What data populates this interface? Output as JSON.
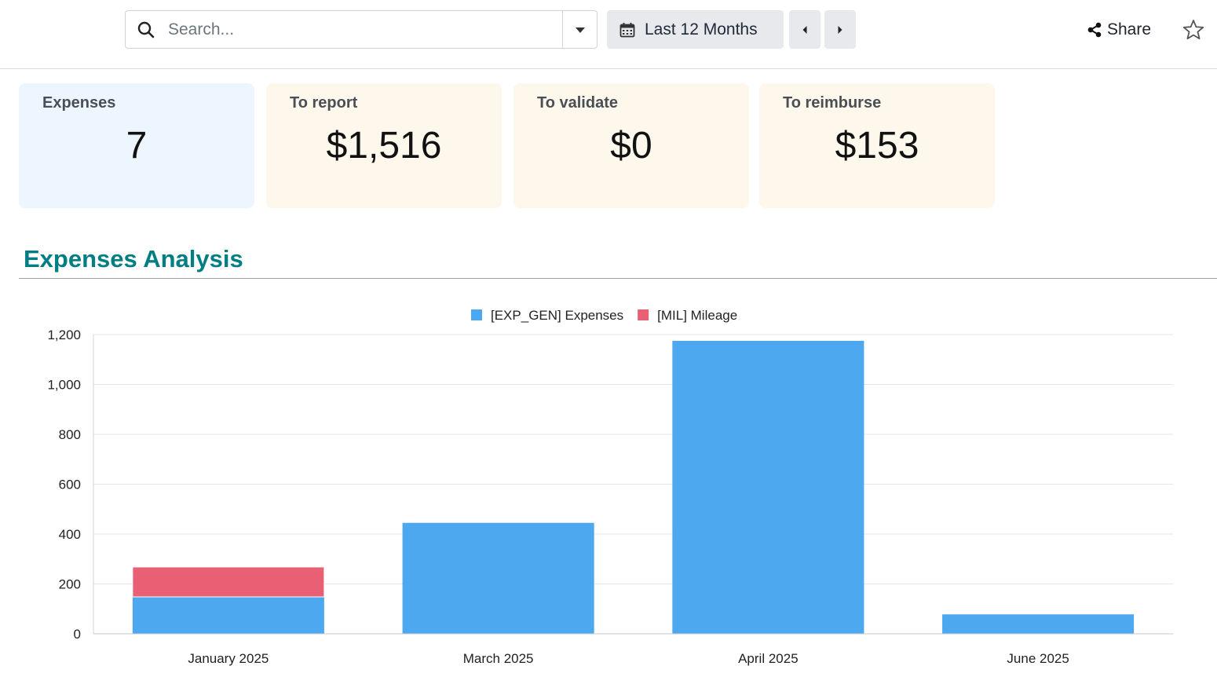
{
  "search": {
    "placeholder": "Search..."
  },
  "date_filter": {
    "label": "Last 12 Months"
  },
  "share": {
    "label": "Share"
  },
  "kpis": [
    {
      "label": "Expenses",
      "value": "7",
      "tone": "blue"
    },
    {
      "label": "To report",
      "value": "$1,516",
      "tone": "cream"
    },
    {
      "label": "To validate",
      "value": "$0",
      "tone": "cream"
    },
    {
      "label": "To reimburse",
      "value": "$153",
      "tone": "cream"
    }
  ],
  "section": {
    "title": "Expenses Analysis"
  },
  "colors": {
    "accent": "#017e84",
    "expenses": "#4ea8ef",
    "mileage": "#e96075"
  },
  "icons": [
    "search-icon",
    "caret-down-icon",
    "calendar-icon",
    "chevron-left-icon",
    "chevron-right-icon",
    "share-icon",
    "star-icon"
  ],
  "chart_data": {
    "type": "bar",
    "stacked": true,
    "categories": [
      "January 2025",
      "March 2025",
      "April 2025",
      "June 2025"
    ],
    "series": [
      {
        "name": "[EXP_GEN] Expenses",
        "color": "#4ea8ef",
        "values": [
          148,
          445,
          1175,
          78
        ]
      },
      {
        "name": "[MIL] Mileage",
        "color": "#e96075",
        "values": [
          120,
          0,
          0,
          0
        ]
      }
    ],
    "ylim": [
      0,
      1200
    ],
    "yticks": [
      0,
      200,
      400,
      600,
      800,
      1000,
      1200
    ],
    "ytick_labels": [
      "0",
      "200",
      "400",
      "600",
      "800",
      "1,000",
      "1,200"
    ],
    "legend": "top-center",
    "grid": true
  }
}
